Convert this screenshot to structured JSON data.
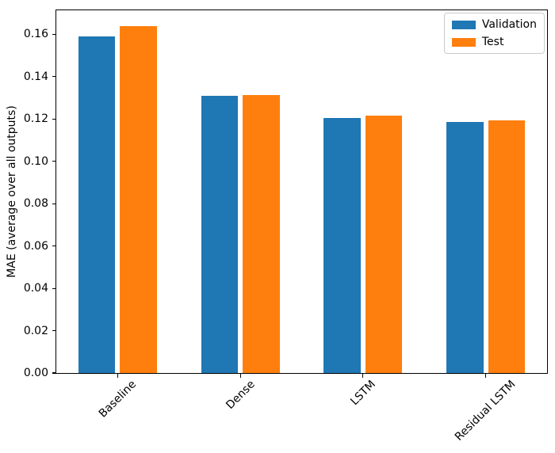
{
  "chart_data": {
    "type": "bar",
    "title": "",
    "xlabel": "",
    "ylabel": "MAE (average over all outputs)",
    "categories": [
      "Baseline",
      "Dense",
      "LSTM",
      "Residual LSTM"
    ],
    "series": [
      {
        "name": "Validation",
        "color": "#1f77b4",
        "values": [
          0.159,
          0.131,
          0.1205,
          0.1185
        ]
      },
      {
        "name": "Test",
        "color": "#ff7f0e",
        "values": [
          0.164,
          0.1312,
          0.1217,
          0.1193
        ]
      }
    ],
    "ylim": [
      0,
      0.1714
    ],
    "yticks": [
      0,
      0.02,
      0.04,
      0.06,
      0.08,
      0.1,
      0.12,
      0.14,
      0.16
    ],
    "ytick_labels": [
      "0.00",
      "0.02",
      "0.04",
      "0.06",
      "0.08",
      "0.10",
      "0.12",
      "0.14",
      "0.16"
    ],
    "xtick_rotation": 45,
    "legend_position": "upper right",
    "grid": false,
    "bar_width_frac": 0.3,
    "series_offset_frac": 0.17
  }
}
